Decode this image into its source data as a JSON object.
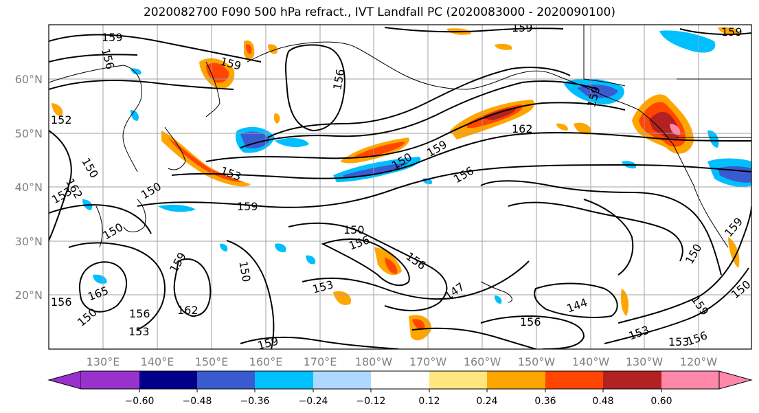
{
  "title": "2020082700 F090 500 hPa refract., IVT Landfall PC (2020083000 - 2020090100)",
  "map": {
    "lat_labels": [
      "60°N",
      "50°N",
      "40°N",
      "30°N",
      "20°N"
    ],
    "lon_labels": [
      "130°E",
      "140°E",
      "150°E",
      "160°E",
      "170°E",
      "180°W",
      "170°W",
      "160°W",
      "150°W",
      "140°W",
      "130°W",
      "120°W"
    ],
    "contour_labels": [
      "159",
      "156",
      "159",
      "156",
      "159",
      "159",
      "150",
      "153",
      "162",
      "156",
      "159",
      "150",
      "153",
      "150",
      "156",
      "159",
      "150",
      "156",
      "150",
      "159",
      "162",
      "165",
      "156",
      "153",
      "150",
      "147",
      "153",
      "162",
      "144",
      "156",
      "159",
      "153",
      "156",
      "159",
      "153",
      "150",
      "150",
      "159",
      "159",
      "156",
      "152",
      "150"
    ]
  },
  "colorbar": {
    "tick_labels": [
      "−0.60",
      "−0.48",
      "−0.36",
      "−0.24",
      "−0.12",
      "0.12",
      "0.24",
      "0.36",
      "0.48",
      "0.60"
    ],
    "colors": [
      "#9932cc",
      "#00008b",
      "#3a5bd0",
      "#00bfff",
      "#add8ff",
      "#ffffff",
      "#ffe680",
      "#ffa500",
      "#ff4500",
      "#b22222",
      "#ff88aa"
    ]
  },
  "colors": {
    "contour": "#000000",
    "grid": "#a0a0a0",
    "coast": "#000000"
  }
}
